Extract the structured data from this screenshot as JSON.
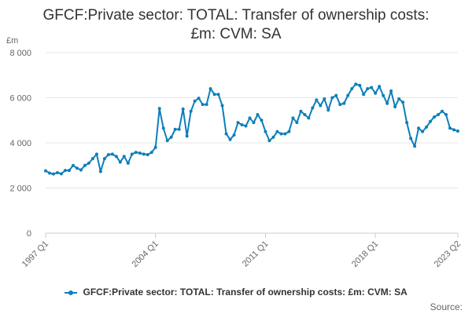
{
  "chart_data": {
    "type": "line",
    "title_lines": [
      "GFCF:Private sector: TOTAL: Transfer of ownership costs:",
      "£m: CVM: SA"
    ],
    "ylabel": "£m",
    "ylim": [
      0,
      8000
    ],
    "yticks": [
      0,
      2000,
      4000,
      6000,
      8000
    ],
    "ytick_labels": [
      "0",
      "2 000",
      "4 000",
      "6 000",
      "8 000"
    ],
    "x_start": "1997 Q1",
    "x_end": "2023 Q2",
    "xticks": [
      "1997 Q1",
      "2004 Q1",
      "2011 Q1",
      "2018 Q1",
      "2023 Q2"
    ],
    "grid": true,
    "color": "#0d7fba",
    "legend_position": "bottom",
    "series": [
      {
        "name": "GFCF:Private sector: TOTAL: Transfer of ownership costs: £m: CVM: SA",
        "values": [
          2760,
          2660,
          2620,
          2680,
          2630,
          2780,
          2780,
          3000,
          2880,
          2800,
          3000,
          3100,
          3300,
          3500,
          2730,
          3300,
          3480,
          3500,
          3400,
          3150,
          3400,
          3100,
          3500,
          3580,
          3550,
          3500,
          3480,
          3580,
          3800,
          5520,
          4650,
          4100,
          4250,
          4600,
          4600,
          5500,
          4300,
          5400,
          5850,
          5980,
          5700,
          5700,
          6400,
          6150,
          6150,
          5650,
          4400,
          4150,
          4350,
          4900,
          4800,
          4750,
          5100,
          4900,
          5250,
          5000,
          4500,
          4100,
          4250,
          4500,
          4400,
          4400,
          4500,
          5100,
          4900,
          5400,
          5250,
          5100,
          5550,
          5900,
          5650,
          5950,
          5450,
          6000,
          6100,
          5700,
          5750,
          6100,
          6400,
          6600,
          6550,
          6150,
          6400,
          6450,
          6200,
          6500,
          6100,
          5750,
          6300,
          5600,
          5950,
          5800,
          4900,
          4200,
          3850,
          4650,
          4500,
          4700,
          4950,
          5150,
          5250,
          5400,
          5250,
          4650,
          4580,
          4520
        ]
      }
    ]
  },
  "source_label": "Source:"
}
